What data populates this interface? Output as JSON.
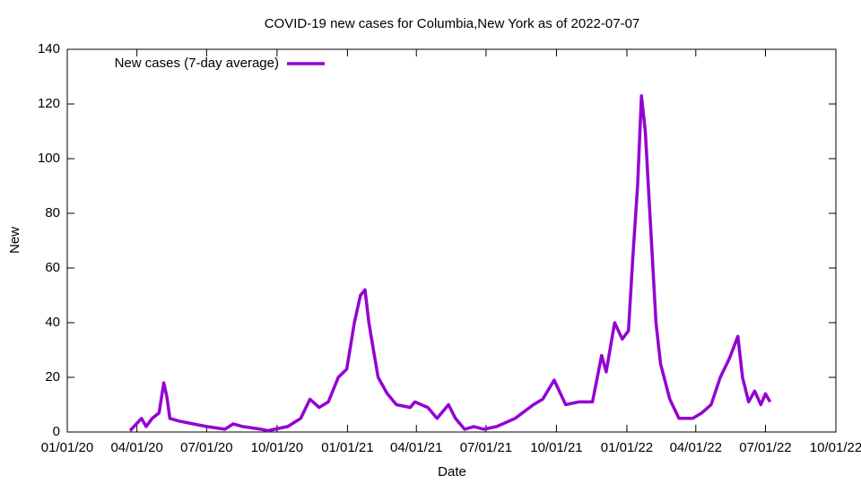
{
  "chart_data": {
    "type": "line",
    "title": "COVID-19 new cases for Columbia,New York as of 2022-07-07",
    "xlabel": "Date",
    "ylabel": "New",
    "x": [
      "03/23/20",
      "04/07/20",
      "04/13/20",
      "04/21/20",
      "04/30/20",
      "05/06/20",
      "05/10/20",
      "05/14/20",
      "05/26/20",
      "06/13/20",
      "07/01/20",
      "07/25/20",
      "08/05/20",
      "08/17/20",
      "09/10/20",
      "09/19/20",
      "10/15/20",
      "11/01/20",
      "11/13/20",
      "11/25/20",
      "12/07/20",
      "12/20/20",
      "12/31/20",
      "01/10/21",
      "01/18/21",
      "01/24/21",
      "01/29/21",
      "02/04/21",
      "02/10/21",
      "02/22/21",
      "03/06/21",
      "03/24/21",
      "03/30/21",
      "04/16/21",
      "04/28/21",
      "05/13/21",
      "05/22/21",
      "06/03/21",
      "06/15/21",
      "06/28/21",
      "07/15/21",
      "08/08/21",
      "09/01/21",
      "09/13/21",
      "09/28/21",
      "10/13/21",
      "10/30/21",
      "11/17/21",
      "11/29/21",
      "12/05/21",
      "12/16/21",
      "12/26/21",
      "01/03/22",
      "01/09/22",
      "01/15/22",
      "01/20/22",
      "01/25/22",
      "01/31/22",
      "02/08/22",
      "02/14/22",
      "02/26/22",
      "03/10/22",
      "03/28/22",
      "04/09/22",
      "04/21/22",
      "05/03/22",
      "05/15/22",
      "05/26/22",
      "06/01/22",
      "06/09/22",
      "06/17/22",
      "06/25/22",
      "07/01/22",
      "07/07/22"
    ],
    "series": [
      {
        "name": "New cases (7-day average)",
        "color": "#9400d3",
        "values": [
          0.5,
          5,
          2,
          5,
          7,
          18,
          13,
          5,
          4,
          3,
          2,
          1,
          3,
          2,
          1,
          0.5,
          2,
          5,
          12,
          9,
          11,
          20,
          23,
          40,
          50,
          52,
          40,
          30,
          20,
          14,
          10,
          9,
          11,
          9,
          5,
          10,
          5,
          1,
          2,
          1,
          2,
          5,
          10,
          12,
          19,
          10,
          11,
          11,
          28,
          22,
          40,
          34,
          37,
          65,
          90,
          123,
          110,
          80,
          40,
          25,
          12,
          5,
          5,
          7,
          10,
          20,
          27,
          35,
          20,
          11,
          15,
          10,
          14,
          11
        ]
      }
    ],
    "xlim": [
      "01/01/20",
      "10/01/22"
    ],
    "xticks": [
      "01/01/20",
      "04/01/20",
      "07/01/20",
      "10/01/20",
      "01/01/21",
      "04/01/21",
      "07/01/21",
      "10/01/21",
      "01/01/22",
      "04/01/22",
      "07/01/22",
      "10/01/22"
    ],
    "ylim": [
      0,
      140
    ],
    "yticks": [
      0,
      20,
      40,
      60,
      80,
      100,
      120,
      140
    ],
    "legend": "top-left"
  }
}
